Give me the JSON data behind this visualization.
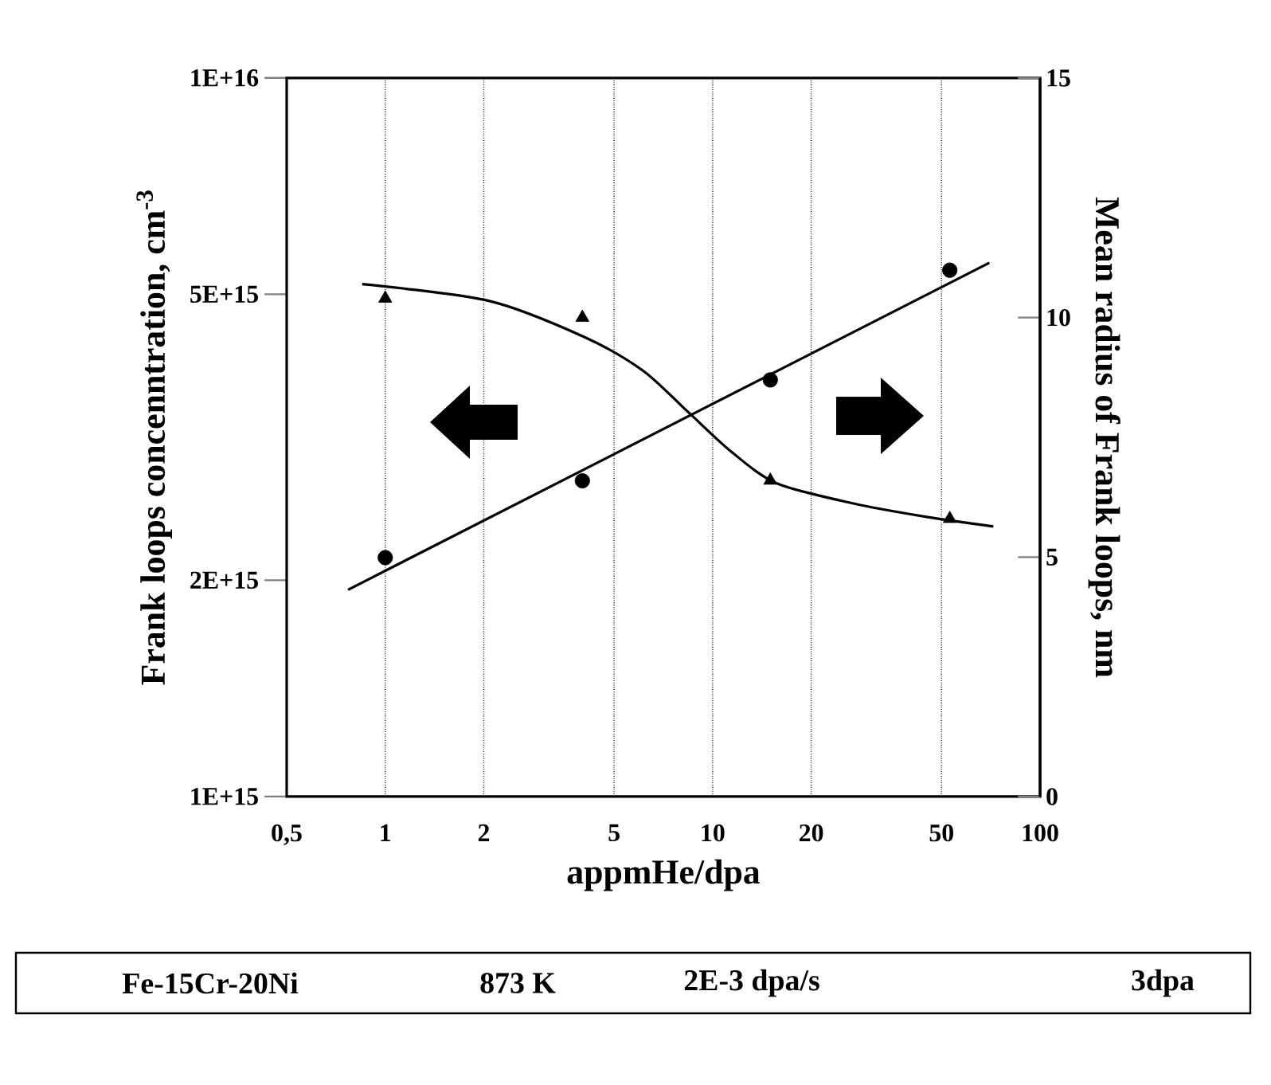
{
  "chart_data": {
    "type": "scatter",
    "xlabel": "appmHe/dpa",
    "ylabel": "Frank loops concenntration, cm$^{-3}$",
    "y2label": "Mean radius of Frank loops, nm",
    "log": "xy",
    "grid": "x",
    "xlim": [
      0.5,
      100
    ],
    "xticks": [
      {
        "value": 0.5,
        "label": "0,5"
      },
      1,
      2,
      5,
      10,
      20,
      50,
      100
    ],
    "ylim": [
      1000000000000000.0,
      1e+16
    ],
    "yticks": [
      {
        "value": 1000000000000000.0,
        "label": "1E+15"
      },
      {
        "value": 2000000000000000.0,
        "label": "2E+15"
      },
      {
        "value": 5000000000000000.0,
        "label": "5E+15"
      },
      {
        "value": 1e+16,
        "label": "1E+16"
      }
    ],
    "y2lim": [
      0,
      15
    ],
    "y2ticks": [
      0,
      5,
      10,
      15
    ],
    "series": [
      {
        "marker": "circle",
        "color": "#000000",
        "x": [
          1,
          4,
          15,
          53
        ],
        "values": [
          2150000000000000.0,
          2750000000000000.0,
          3800000000000000.0,
          5400000000000000.0
        ]
      },
      {
        "marker": "triangle",
        "axis": "y2",
        "color": "#000000",
        "x": [
          1,
          4,
          15,
          53
        ],
        "values": [
          10.4,
          10.0,
          6.6,
          5.8
        ]
      },
      {
        "type": "line",
        "marker": "none",
        "line_style": "solid",
        "color": "#000000",
        "x": [
          0.77,
          70
        ],
        "values": [
          1940000000000000.0,
          5530000000000000.0
        ]
      },
      {
        "type": "line",
        "marker": "none",
        "line_style": "solid",
        "axis": "y2",
        "color": "#000000",
        "x": [
          0.85,
          2.07,
          4.04,
          6.1,
          8.35,
          11.4,
          15.7,
          26.9,
          45,
          72
        ],
        "values": [
          10.7,
          10.35,
          9.6,
          8.9,
          8.05,
          7.2,
          6.54,
          6.12,
          5.84,
          5.64
        ]
      }
    ],
    "annotations": [
      "Fe-15Cr-20Ni",
      "873 K",
      "2E-3 dpa/s",
      "3dpa"
    ]
  }
}
